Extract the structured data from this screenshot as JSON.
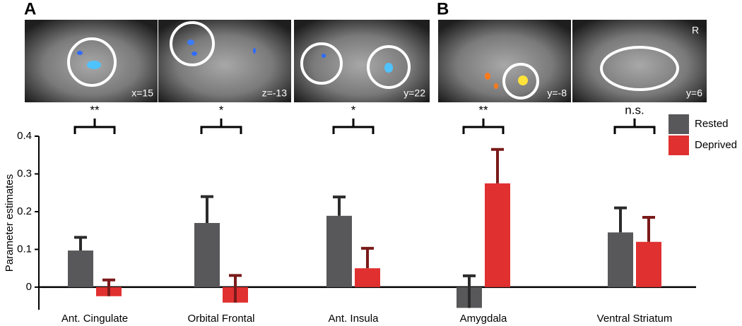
{
  "chart_data": {
    "type": "bar",
    "panel_labels": [
      "A",
      "B"
    ],
    "image_labels": [
      "x=15",
      "z=-13",
      "y=22",
      "y=-8",
      "y=6"
    ],
    "orientation_label": "R",
    "categories": [
      "Ant. Cingulate",
      "Orbital Frontal",
      "Ant. Insula",
      "Amygdala",
      "Ventral Striatum"
    ],
    "significance": [
      "**",
      "*",
      "*",
      "**",
      "n.s."
    ],
    "y_label": "Parameter estimates",
    "ylim": [
      -0.06,
      0.4
    ],
    "yticks": [
      0,
      0.1,
      0.2,
      0.3,
      0.4
    ],
    "legend": "upper right",
    "series": [
      {
        "name": "Rested",
        "color": "#58585a",
        "error_color": "#2b2b2b",
        "values": [
          0.097,
          0.17,
          0.189,
          -0.055,
          0.145
        ],
        "errors": [
          0.035,
          0.07,
          0.05,
          0.085,
          0.065
        ]
      },
      {
        "name": "Deprived",
        "color": "#e03030",
        "error_color": "#7a1a1a",
        "values": [
          -0.024,
          -0.041,
          0.05,
          0.275,
          0.12
        ],
        "errors": [
          0.043,
          0.072,
          0.053,
          0.09,
          0.065
        ]
      }
    ]
  }
}
